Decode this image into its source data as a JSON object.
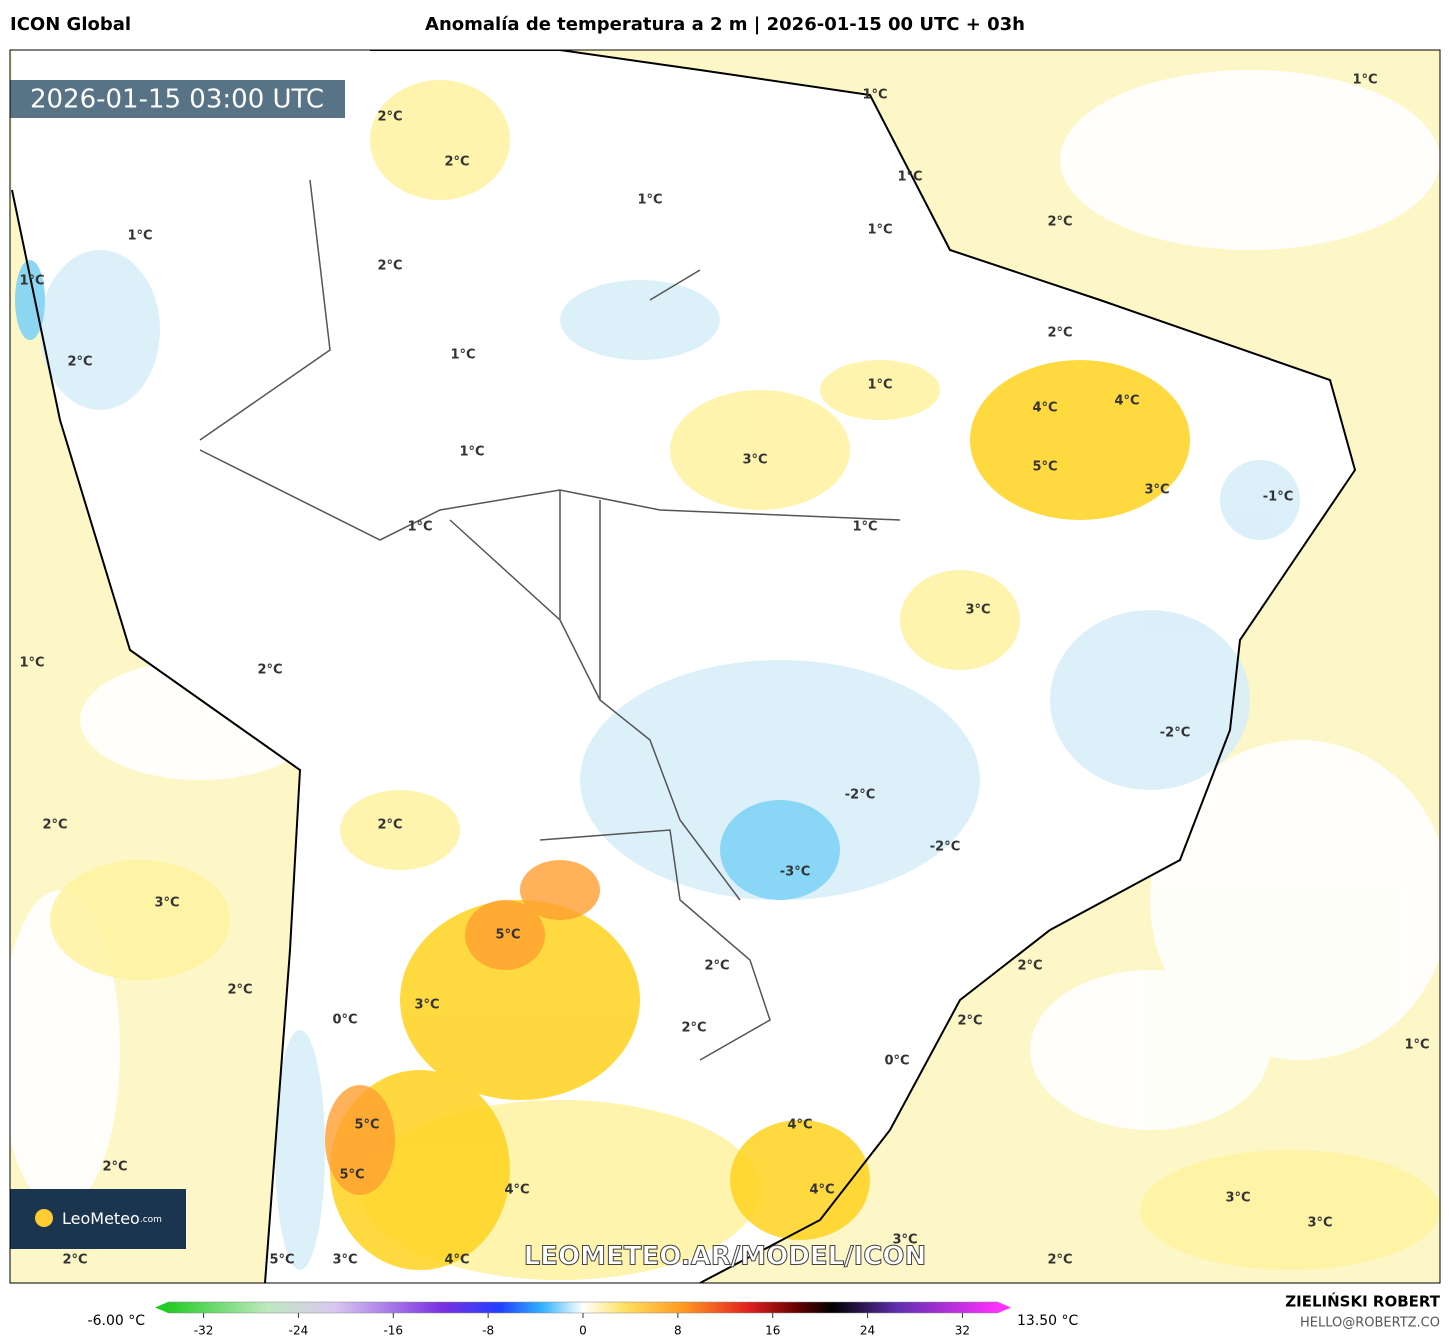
{
  "header": {
    "model": "ICON Global",
    "title": "Anomalía de temperatura a 2 m | 2026-01-15 00 UTC + 03h"
  },
  "timestamp": "2026-01-15 03:00 UTC",
  "labels": [
    "1°C",
    "2°C",
    "1°C",
    "2°C",
    "1°C",
    "1°C",
    "2°C",
    "1°C",
    "1°C",
    "2°C",
    "1°C",
    "2°C",
    "2°C",
    "1°C",
    "1°C",
    "4°C",
    "4°C",
    "1°C",
    "3°C",
    "5°C",
    "3°C",
    "-1°C",
    "1°C",
    "1°C",
    "3°C",
    "1°C",
    "2°C",
    "-2°C",
    "-2°C",
    "2°C",
    "2°C",
    "-2°C",
    "-3°C",
    "3°C",
    "5°C",
    "2°C",
    "2°C",
    "2°C",
    "3°C",
    "0°C",
    "2°C",
    "2°C",
    "0°C",
    "1°C",
    "5°C",
    "4°C",
    "2°C",
    "5°C",
    "4°C",
    "4°C",
    "3°C",
    "3°C",
    "3°C",
    "2°C",
    "5°C",
    "3°C",
    "4°C",
    "2°C"
  ],
  "watermark": "LEOMETEO.AR/MODEL/ICON",
  "logo": {
    "name": "LeoMeteo",
    "suffix": ".com"
  },
  "colorbar": {
    "min_label": "-6.00 °C",
    "max_label": "13.50 °C",
    "lim": [
      -35,
      35
    ],
    "ticks": [
      -32,
      -24,
      -16,
      -8,
      0,
      8,
      16,
      24,
      32
    ]
  },
  "credit": {
    "author": "ZIELIŃSKI ROBERT",
    "contact": "HELLO@ROBERTZ.CO"
  }
}
